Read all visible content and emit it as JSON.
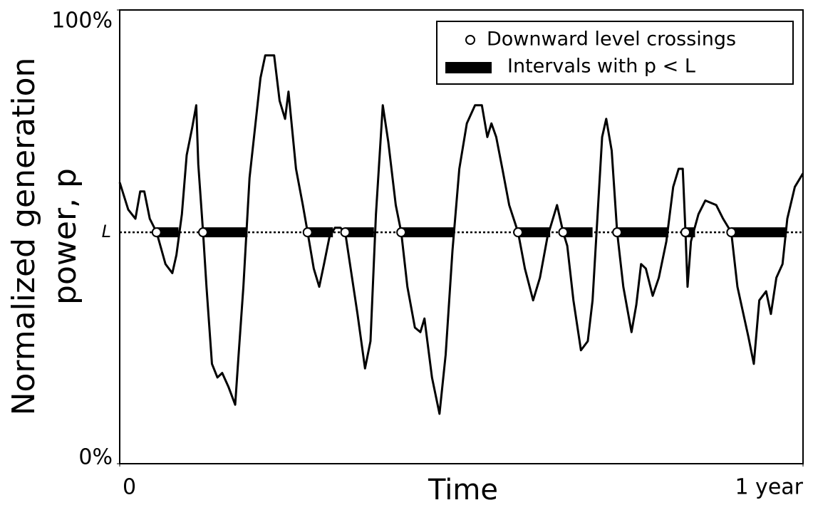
{
  "chart_data": {
    "type": "line",
    "xlabel": "Time",
    "ylabel": [
      "Normalized generation",
      "power, p"
    ],
    "xlim": [
      0,
      1
    ],
    "xticks": [
      0,
      {
        "value": 1,
        "label": "1 year"
      }
    ],
    "ylim": [
      0,
      100
    ],
    "yticks": [
      {
        "value": 0,
        "label": "0%"
      },
      {
        "value": 100,
        "label": "100%"
      }
    ],
    "level": {
      "value": 51,
      "label": "L"
    },
    "color": "#000000",
    "legend": "top-right",
    "x": [
      0,
      0.0125,
      0.023,
      0.03,
      0.036,
      0.044,
      0.054,
      0.067,
      0.077,
      0.083,
      0.091,
      0.098,
      0.106,
      0.112,
      0.115,
      0.122,
      0.127,
      0.135,
      0.143,
      0.15,
      0.159,
      0.169,
      0.174,
      0.181,
      0.19,
      0.198,
      0.206,
      0.213,
      0.226,
      0.234,
      0.242,
      0.247,
      0.258,
      0.268,
      0.275,
      0.284,
      0.292,
      0.299,
      0.307,
      0.315,
      0.323,
      0.33,
      0.338,
      0.348,
      0.359,
      0.367,
      0.375,
      0.385,
      0.393,
      0.404,
      0.412,
      0.421,
      0.432,
      0.44,
      0.446,
      0.457,
      0.468,
      0.477,
      0.487,
      0.497,
      0.508,
      0.52,
      0.53,
      0.538,
      0.544,
      0.551,
      0.56,
      0.57,
      0.583,
      0.593,
      0.605,
      0.615,
      0.626,
      0.64,
      0.649,
      0.655,
      0.664,
      0.675,
      0.685,
      0.692,
      0.699,
      0.706,
      0.712,
      0.72,
      0.728,
      0.737,
      0.749,
      0.756,
      0.763,
      0.77,
      0.78,
      0.789,
      0.8,
      0.81,
      0.818,
      0.824,
      0.828,
      0.831,
      0.836,
      0.847,
      0.857,
      0.873,
      0.883,
      0.895,
      0.904,
      0.92,
      0.928,
      0.936,
      0.946,
      0.953,
      0.961,
      0.97,
      0.977,
      0.988,
      1
    ],
    "values": [
      62,
      56,
      54,
      60,
      60,
      54,
      51,
      44,
      42,
      46,
      55,
      68,
      74,
      79,
      66,
      51,
      39,
      22,
      19,
      20,
      17,
      13,
      24,
      39,
      63,
      74,
      85,
      90,
      90,
      80,
      76,
      82,
      65,
      57,
      51,
      43,
      39,
      44,
      50,
      52,
      52,
      51,
      43,
      33,
      21,
      27,
      55,
      79,
      71,
      57,
      51,
      39,
      30,
      29,
      32,
      19,
      11,
      24,
      47,
      65,
      75,
      79,
      79,
      72,
      75,
      72,
      65,
      57,
      51,
      43,
      36,
      41,
      50,
      57,
      51,
      48,
      36,
      25,
      27,
      36,
      54,
      72,
      76,
      69,
      51,
      39,
      29,
      35,
      44,
      43,
      37,
      41,
      49,
      61,
      65,
      65,
      51,
      39,
      49,
      55,
      58,
      57,
      54,
      51,
      39,
      28,
      22,
      36,
      38,
      33,
      41,
      44,
      54,
      61,
      64
    ],
    "crossings": {
      "name": "Downward level crossings",
      "x": [
        0.054,
        0.122,
        0.275,
        0.33,
        0.412,
        0.583,
        0.649,
        0.728,
        0.828,
        0.895
      ]
    },
    "intervals": {
      "name": "Intervals with p < L",
      "starts": [
        0.054,
        0.122,
        0.275,
        0.33,
        0.412,
        0.583,
        0.649,
        0.728,
        0.828,
        0.895
      ],
      "ends": [
        0.086,
        0.187,
        0.312,
        0.372,
        0.489,
        0.63,
        0.692,
        0.803,
        0.842,
        0.976
      ]
    }
  }
}
